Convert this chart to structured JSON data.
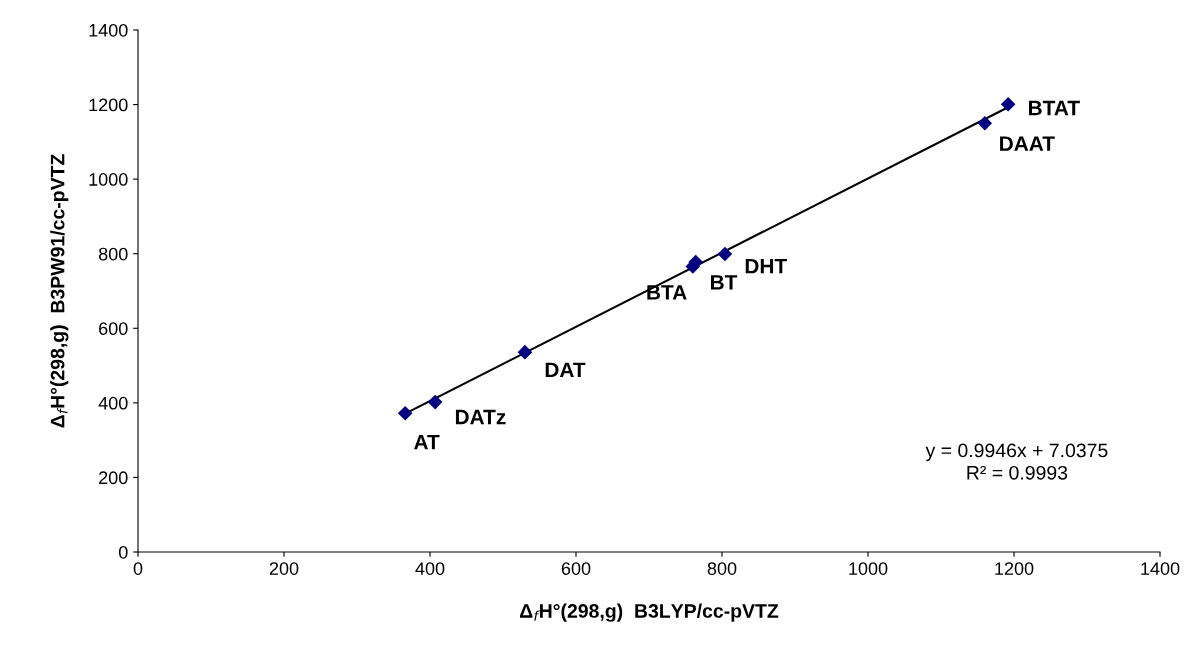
{
  "chart_data": {
    "type": "scatter",
    "xlabel": "Δ$_{f}$H°(298,g)  B3LYP/cc-pVTZ",
    "ylabel": "Δ$_{f}$H°(298,g)  B3PW91/cc-pVTZ",
    "x": [
      366,
      407,
      530,
      760,
      764,
      804,
      1160,
      1192
    ],
    "series": [
      {
        "color": "#000080",
        "values": [
          372,
          402,
          536,
          766,
          778,
          799,
          1150,
          1201
        ],
        "marker": "diamond",
        "value_labels": [
          "AT",
          "DATz",
          "DAT",
          "BTA",
          "BT",
          "DHT",
          "DAAT",
          "BTAT"
        ]
      },
      {
        "type": "line",
        "color": "#000000",
        "x": [
          366,
          1192
        ],
        "values": [
          371,
          1193
        ],
        "marker": "none",
        "line_style": "solid"
      }
    ],
    "xlim": [
      0,
      1400
    ],
    "xticks": [
      0,
      200,
      400,
      600,
      800,
      1000,
      1200,
      1400
    ],
    "ylim": [
      0,
      1400
    ],
    "yticks": [
      0,
      200,
      400,
      600,
      800,
      1000,
      1200,
      1400
    ],
    "grid": false,
    "annotations": [
      "y = 0.9946x + 7.0375\nR² = 0.9993"
    ]
  }
}
